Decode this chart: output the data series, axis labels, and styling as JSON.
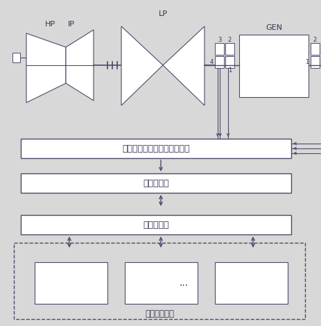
{
  "bg_color": "#d8d8d8",
  "line_color": "#4a4a6a",
  "box_fill": "#ffffff",
  "text_color": "#333355",
  "labels": {
    "HP": "HP",
    "IP": "IP",
    "LP": "LP",
    "GEN": "GEN",
    "interface_box": "汽轮发电机热工保护系统接口",
    "compute_box": "计算服务器",
    "web_box": "网页服务器",
    "browser_box": "用户端浏览器",
    "dots": "..."
  },
  "figsize": [
    4.64,
    4.7
  ],
  "dpi": 100
}
